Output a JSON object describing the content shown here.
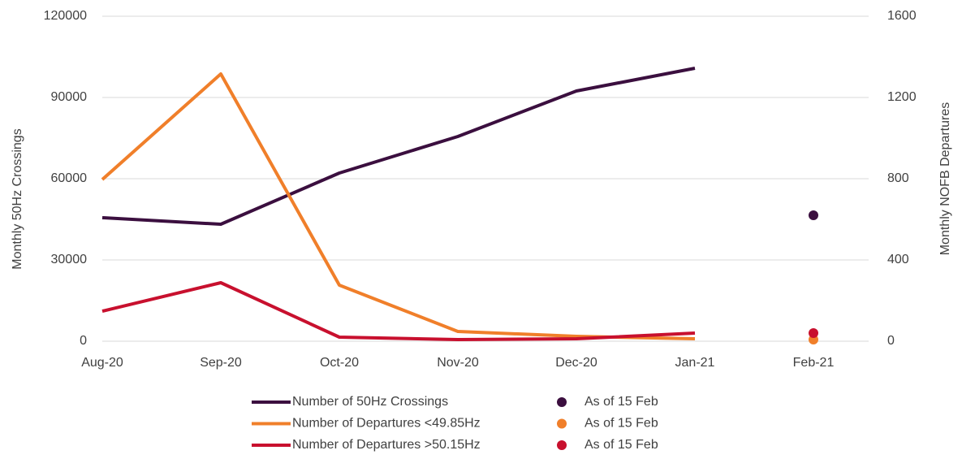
{
  "chart_data": {
    "type": "line",
    "categories": [
      "Aug-20",
      "Sep-20",
      "Oct-20",
      "Nov-20",
      "Dec-20",
      "Jan-21",
      "Feb-21"
    ],
    "ylabel": "Monthly 50Hz Crossings",
    "y2label": "Monthly NOFB Departures",
    "ylim": [
      0,
      120000
    ],
    "yticks": [
      0,
      30000,
      60000,
      90000,
      120000
    ],
    "y2lim": [
      0,
      1600
    ],
    "y2ticks": [
      0,
      400,
      800,
      1200,
      1600
    ],
    "grid": true,
    "series": [
      {
        "name": "Number of 50Hz Crossings",
        "color": "#3b0f3f",
        "style": "line",
        "axis": "y",
        "values": [
          45600,
          43200,
          62100,
          75600,
          92400,
          100800,
          null
        ]
      },
      {
        "name": "Number of Departures <49.85Hz",
        "color": "#f07f2a",
        "style": "line",
        "axis": "y2",
        "values": [
          796,
          1316,
          276,
          48,
          24,
          12,
          null
        ]
      },
      {
        "name": "Number of Departures >50.15Hz",
        "color": "#c8102e",
        "style": "line",
        "axis": "y2",
        "values": [
          148,
          288,
          20,
          8,
          12,
          40,
          null
        ]
      },
      {
        "name": "As of 15 Feb",
        "color": "#3b0f3f",
        "style": "dot",
        "axis": "y",
        "values": [
          null,
          null,
          null,
          null,
          null,
          null,
          46500
        ]
      },
      {
        "name": "As of 15 Feb",
        "color": "#f07f2a",
        "style": "dot",
        "axis": "y2",
        "values": [
          null,
          null,
          null,
          null,
          null,
          null,
          8
        ]
      },
      {
        "name": "As of 15 Feb",
        "color": "#c8102e",
        "style": "dot",
        "axis": "y2",
        "values": [
          null,
          null,
          null,
          null,
          null,
          null,
          40
        ]
      }
    ]
  }
}
